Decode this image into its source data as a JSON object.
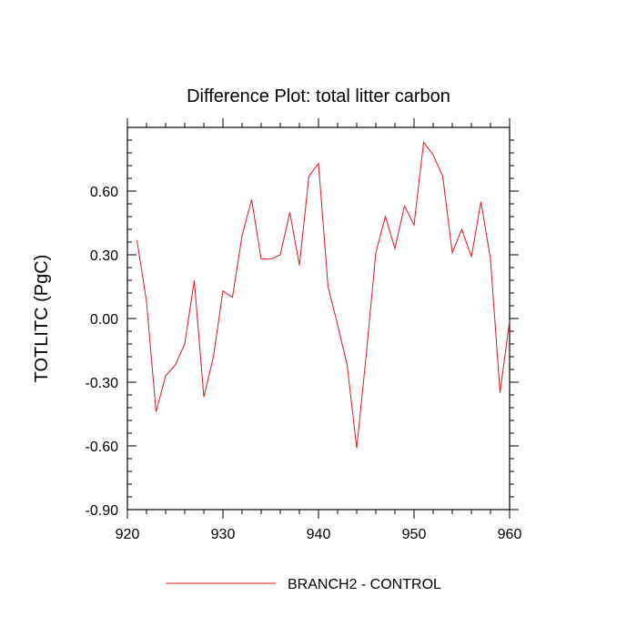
{
  "chart_data": {
    "type": "line",
    "title": "Difference Plot: total litter carbon",
    "xlabel": "",
    "ylabel": "TOTLITC  (PgC)",
    "xlim": [
      920,
      960
    ],
    "ylim": [
      -0.9,
      0.9
    ],
    "xticks": [
      920,
      930,
      940,
      950,
      960
    ],
    "xtick_labels": [
      "920",
      "930",
      "940",
      "950",
      "960"
    ],
    "yticks": [
      -0.9,
      -0.6,
      -0.3,
      0.0,
      0.3,
      0.6
    ],
    "ytick_labels": [
      "-0.90",
      "-0.60",
      "-0.30",
      "0.00",
      "0.30",
      "0.60"
    ],
    "grid": false,
    "legend_position": "bottom-center",
    "series": [
      {
        "name": "BRANCH2 - CONTROL",
        "color": "#e8141c",
        "x": [
          921,
          922,
          923,
          924,
          925,
          926,
          927,
          928,
          929,
          930,
          931,
          932,
          933,
          934,
          935,
          936,
          937,
          938,
          939,
          940,
          941,
          942,
          943,
          944,
          945,
          946,
          947,
          948,
          949,
          950,
          951,
          952,
          953,
          954,
          955,
          956,
          957,
          958,
          959,
          960
        ],
        "y": [
          0.37,
          0.08,
          -0.44,
          -0.27,
          -0.22,
          -0.12,
          0.18,
          -0.37,
          -0.18,
          0.13,
          0.1,
          0.39,
          0.56,
          0.28,
          0.28,
          0.3,
          0.5,
          0.25,
          0.67,
          0.73,
          0.15,
          -0.03,
          -0.22,
          -0.61,
          -0.17,
          0.31,
          0.48,
          0.33,
          0.53,
          0.44,
          0.83,
          0.77,
          0.67,
          0.31,
          0.42,
          0.29,
          0.55,
          0.28,
          -0.35,
          -0.01
        ]
      }
    ]
  }
}
